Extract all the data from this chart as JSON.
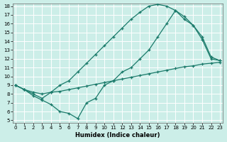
{
  "bg_color": "#cceee8",
  "grid_color": "#b8ddd8",
  "line_color": "#1a7a6a",
  "xlabel": "Humidex (Indice chaleur)",
  "xlim": [
    -0.3,
    23.3
  ],
  "ylim": [
    4.7,
    18.3
  ],
  "xticks": [
    0,
    1,
    2,
    3,
    4,
    5,
    6,
    7,
    8,
    9,
    10,
    11,
    12,
    13,
    14,
    15,
    16,
    17,
    18,
    19,
    20,
    21,
    22,
    23
  ],
  "yticks": [
    5,
    6,
    7,
    8,
    9,
    10,
    11,
    12,
    13,
    14,
    15,
    16,
    17,
    18
  ],
  "curve1_x": [
    0,
    1,
    2,
    3,
    4,
    5,
    6,
    7,
    8,
    9,
    10,
    11,
    12,
    13,
    14,
    15,
    16,
    17,
    18,
    19,
    20,
    21,
    22,
    23
  ],
  "curve1_y": [
    9.0,
    8.5,
    8.2,
    8.0,
    8.2,
    8.3,
    8.5,
    8.7,
    8.9,
    9.1,
    9.3,
    9.5,
    9.7,
    9.9,
    10.1,
    10.3,
    10.5,
    10.7,
    10.9,
    11.1,
    11.2,
    11.4,
    11.5,
    11.6
  ],
  "curve2_x": [
    0,
    1,
    2,
    3,
    4,
    5,
    6,
    7,
    8,
    9,
    10,
    11,
    12,
    13,
    14,
    15,
    16,
    17,
    18,
    19,
    20,
    21,
    22,
    23
  ],
  "curve2_y": [
    9.0,
    8.5,
    8.0,
    7.5,
    8.2,
    9.0,
    9.5,
    10.5,
    11.5,
    12.5,
    13.5,
    14.5,
    15.5,
    16.5,
    17.3,
    18.0,
    18.2,
    18.0,
    17.5,
    16.8,
    15.8,
    14.5,
    12.2,
    11.8
  ],
  "curve3_x": [
    0,
    1,
    2,
    3,
    4,
    5,
    6,
    7,
    8,
    9,
    10,
    11,
    12,
    13,
    14,
    15,
    16,
    17,
    18,
    19,
    20,
    21,
    22,
    23
  ],
  "curve3_y": [
    9.0,
    8.5,
    7.8,
    7.3,
    6.8,
    6.0,
    5.8,
    5.2,
    7.0,
    7.5,
    9.0,
    9.5,
    10.5,
    11.0,
    12.0,
    13.0,
    14.5,
    16.0,
    17.5,
    16.5,
    15.8,
    14.2,
    12.0,
    11.8
  ]
}
